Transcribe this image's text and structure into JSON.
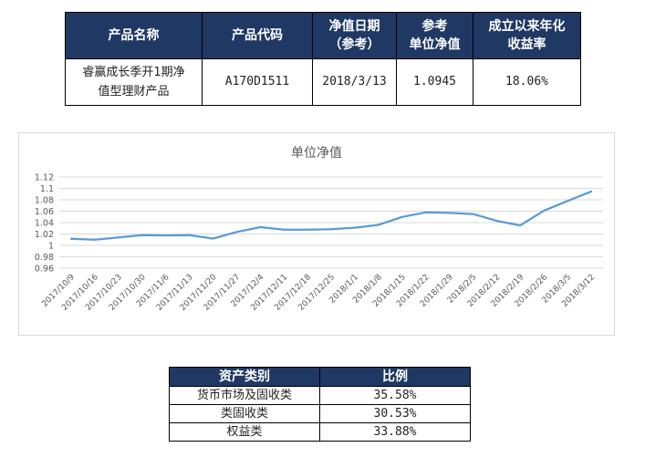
{
  "product_table": {
    "headers": {
      "name": "产品名称",
      "code": "产品代码",
      "date_line1": "净值日期",
      "date_line2": "（参考）",
      "nav_line1": "参考",
      "nav_line2": "单位净值",
      "return_line1": "成立以来年化",
      "return_line2": "收益率"
    },
    "row": {
      "name_line1": "睿赢成长季开1期净",
      "name_line2": "值型理财产品",
      "code": "A170D1511",
      "date": "2018/3/13",
      "nav": "1.0945",
      "annual_return": "18.06%"
    }
  },
  "chart_data": {
    "type": "line",
    "title": "单位净值",
    "xlabel": "",
    "ylabel": "",
    "ylim": [
      0.96,
      1.12
    ],
    "yticks": [
      "1.12",
      "1.1",
      "1.08",
      "1.06",
      "1.04",
      "1.02",
      "1",
      "0.98",
      "0.96"
    ],
    "categories": [
      "2017/10/9",
      "2017/10/16",
      "2017/10/23",
      "2017/10/30",
      "2017/11/6",
      "2017/11/13",
      "2017/11/20",
      "2017/11/27",
      "2017/12/4",
      "2017/12/11",
      "2017/12/18",
      "2017/12/25",
      "2018/1/1",
      "2018/1/8",
      "2018/1/15",
      "2018/1/22",
      "2018/1/29",
      "2018/2/5",
      "2018/2/12",
      "2018/2/19",
      "2018/2/26",
      "2018/3/5",
      "2018/3/12"
    ],
    "values": [
      1.0115,
      1.01,
      1.014,
      1.018,
      1.0175,
      1.018,
      1.012,
      1.0235,
      1.032,
      1.0275,
      1.0275,
      1.0285,
      1.031,
      1.036,
      1.05,
      1.058,
      1.057,
      1.055,
      1.043,
      1.035,
      1.061,
      1.078,
      1.0945
    ],
    "grid": true,
    "legend": "none",
    "line_color": "#5b9bd5"
  },
  "alloc_table": {
    "headers": {
      "category": "资产类别",
      "ratio": "比例"
    },
    "rows": [
      {
        "category": "货币市场及固收类",
        "ratio": "35.58%"
      },
      {
        "category": "类固收类",
        "ratio": "30.53%"
      },
      {
        "category": "权益类",
        "ratio": "33.88%"
      }
    ]
  }
}
